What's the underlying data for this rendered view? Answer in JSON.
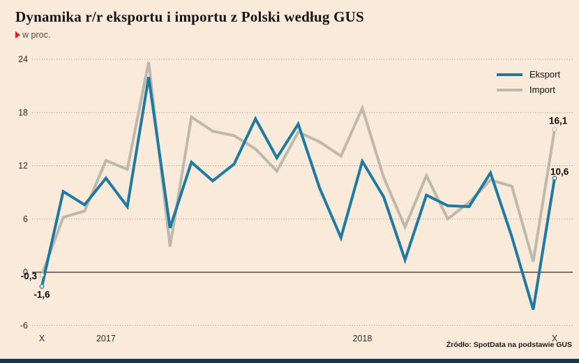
{
  "header": {
    "title": "Dynamika r/r eksportu i importu z Polski według GUS",
    "subtitle": "w proc.",
    "bullet_color": "#e8191f"
  },
  "legend": [
    {
      "label": "Eksport",
      "color": "#1d7aa3"
    },
    {
      "label": "Import",
      "color": "#bdb9ae"
    }
  ],
  "source": "Źródło: SpotData na podstawie GUS",
  "chart_data": {
    "type": "line",
    "title": "Dynamika r/r eksportu i importu z Polski według GUS",
    "ylabel": "w proc.",
    "x_unit": "month",
    "n_points": 25,
    "x_range_note": "X 2016 to X 2018, monthly",
    "x_ticks": [
      {
        "index": 0,
        "label": "X"
      },
      {
        "index": 3,
        "label": "2017"
      },
      {
        "index": 15,
        "label": "2018"
      },
      {
        "index": 24,
        "label": "X"
      }
    ],
    "y_ticks": [
      24,
      18,
      12,
      6,
      0,
      -6
    ],
    "ylim": [
      -6,
      24
    ],
    "grid": "horizontal dotted, solid zero line",
    "legend_position": "top-right",
    "series": [
      {
        "name": "Eksport",
        "color": "#1d7aa3",
        "values": [
          -1.6,
          9.1,
          7.6,
          10.6,
          7.4,
          22.0,
          5.0,
          12.4,
          10.3,
          12.2,
          17.3,
          12.9,
          16.7,
          9.5,
          3.9,
          12.5,
          8.5,
          1.4,
          8.7,
          7.5,
          7.4,
          11.2,
          4.0,
          -4.2,
          10.6
        ]
      },
      {
        "name": "Import",
        "color": "#bdb9ae",
        "values": [
          -0.3,
          6.2,
          6.9,
          12.6,
          11.6,
          23.7,
          2.9,
          17.5,
          15.9,
          15.4,
          13.9,
          11.4,
          15.8,
          14.7,
          13.1,
          18.5,
          10.7,
          5.1,
          10.9,
          6.0,
          7.9,
          10.4,
          9.7,
          1.2,
          16.1
        ]
      }
    ],
    "annotations": [
      {
        "series": "Import",
        "index": 0,
        "text": "-0,3",
        "position": "left"
      },
      {
        "series": "Eksport",
        "index": 0,
        "text": "-1,6",
        "position": "below"
      },
      {
        "series": "Import",
        "index": 24,
        "text": "16,1",
        "position": "above"
      },
      {
        "series": "Eksport",
        "index": 24,
        "text": "10,6",
        "position": "above-left"
      }
    ]
  }
}
